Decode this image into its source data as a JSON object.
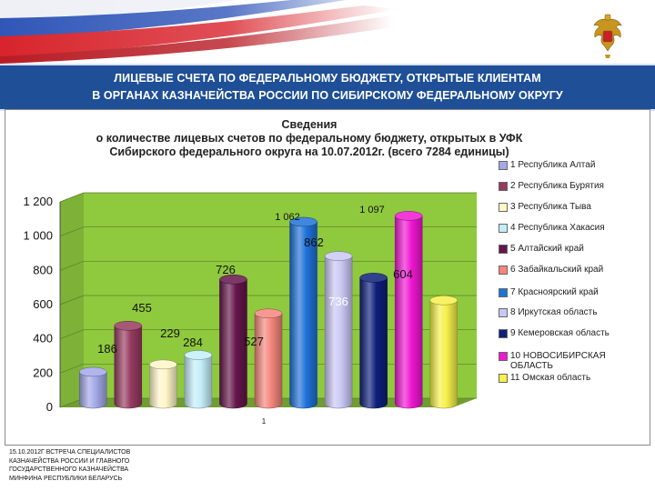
{
  "header": {
    "line1": "ЛИЦЕВЫЕ СЧЕТА ПО ФЕДЕРАЛЬНОМУ БЮДЖЕТУ, ОТКРЫТЫЕ КЛИЕНТАМ",
    "line2": "В ОРГАНАХ КАЗНАЧЕЙСТВА РОССИИ ПО СИБИРСКОМУ ФЕДЕРАЛЬНОМУ ОКРУГУ"
  },
  "footer": {
    "line1": "15.10.2012г ВСТРЕЧА СПЕЦИАЛИСТОВ",
    "line2": "КАЗНАЧЕЙСТВА РОССИИ И ГЛАВНОГО",
    "line3": "ГОСУДАРСТВЕННОГО КАЗНАЧЕЙСТВА",
    "line4": "МИНФИНА РЕСПУБЛИКИ БЕЛАРУСЬ"
  },
  "icons": {
    "emblem": "double-headed-eagle-emblem-icon",
    "flag": "russian-flag-icon"
  },
  "chart_data": {
    "type": "bar",
    "title_lines": [
      "Сведения",
      "о количестве лицевых счетов по федеральному бюджету, открытых в УФК",
      "Сибирского федерального округа на 10.07.2012г. (всего 7284 единицы)"
    ],
    "x_tick": "1",
    "ylim": [
      0,
      1200
    ],
    "yticks": [
      "0",
      "200",
      "400",
      "600",
      "800",
      "1 000",
      "1 200"
    ],
    "yticks_values": [
      0,
      200,
      400,
      600,
      800,
      1000,
      1200
    ],
    "grid": true,
    "legend_position": "right",
    "background": "#8fc93e",
    "series": [
      {
        "name": "1 Республика Алтай",
        "value": 186,
        "label": "186",
        "color": "#a3a8e8"
      },
      {
        "name": "2 Республика Бурятия",
        "value": 455,
        "label": "455",
        "color": "#963a5f"
      },
      {
        "name": "3 Республика Тыва",
        "value": 229,
        "label": "229",
        "color": "#fff6c8"
      },
      {
        "name": "4 Республика Хакасия",
        "value": 284,
        "label": "284",
        "color": "#c3eef9"
      },
      {
        "name": "5 Алтайский край",
        "value": 726,
        "label": "726",
        "color": "#65154b"
      },
      {
        "name": "6 Забайкальский край",
        "value": 527,
        "label": "527",
        "color": "#f4867c"
      },
      {
        "name": "7 Красноярский край",
        "value": 1062,
        "label": "1 062",
        "color": "#1f72d8"
      },
      {
        "name": "8 Иркутская область",
        "value": 862,
        "label": "862",
        "color": "#c9c8f4"
      },
      {
        "name": "9 Кемеровская область",
        "value": 736,
        "label": "736",
        "color": "#0d1f7a"
      },
      {
        "name": "10 НОВОСИБИРСКАЯ ОБЛАСТЬ",
        "value": 1097,
        "label": "1 097",
        "color": "#f017d2"
      },
      {
        "name": "11 Омская область",
        "value": 604,
        "label": "604",
        "color": "#f6f04a"
      }
    ]
  }
}
